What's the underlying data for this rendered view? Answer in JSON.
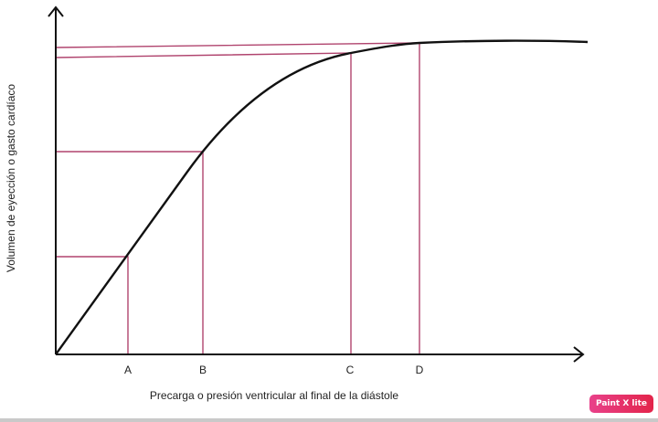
{
  "diagram": {
    "x_axis_label": "Precarga o presión ventricular al final de la diástole",
    "y_axis_label": "Volumen de eyección o gasto cardíaco",
    "points": [
      "A",
      "B",
      "C",
      "D"
    ],
    "colors": {
      "curve": "#111111",
      "axes": "#111111",
      "guides": "#b0446e"
    }
  },
  "watermark": {
    "text": "Paint X lite"
  }
}
